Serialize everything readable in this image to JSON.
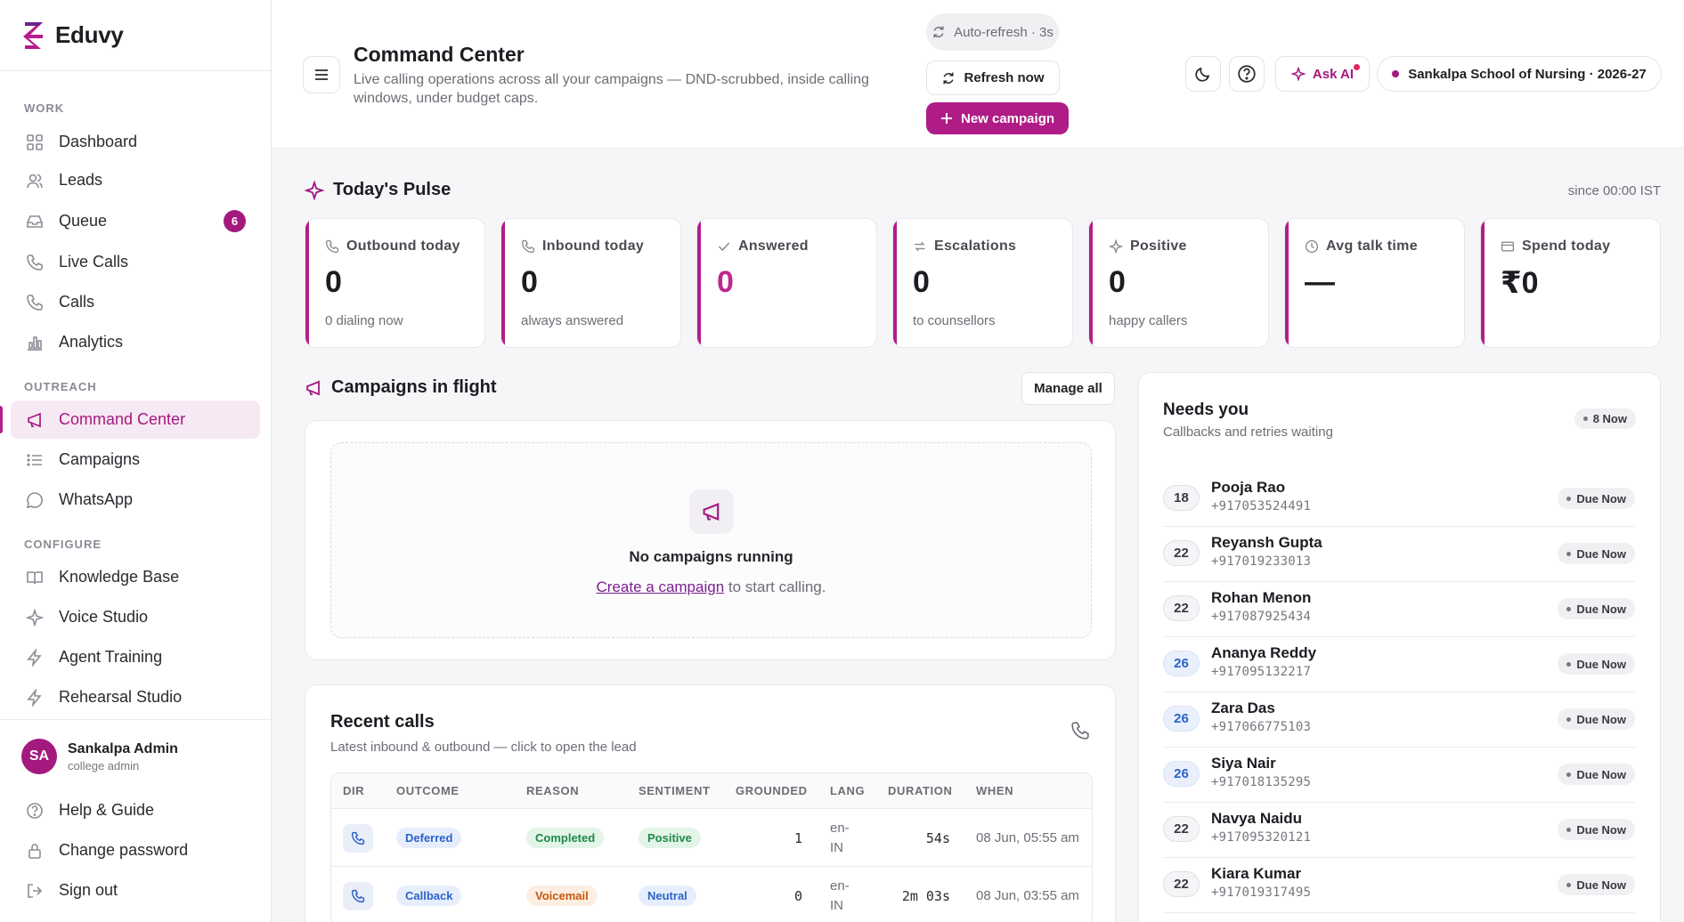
{
  "brand": {
    "name": "Eduvy"
  },
  "sidebar": {
    "sections": {
      "work": "WORK",
      "outreach": "OUTREACH",
      "configure": "CONFIGURE"
    },
    "items": [
      {
        "label": "Dashboard",
        "icon": "grid-icon"
      },
      {
        "label": "Leads",
        "icon": "users-icon"
      },
      {
        "label": "Queue",
        "icon": "inbox-icon",
        "badge": "6"
      },
      {
        "label": "Live Calls",
        "icon": "phone-icon"
      },
      {
        "label": "Calls",
        "icon": "phone-icon"
      },
      {
        "label": "Analytics",
        "icon": "bar-chart-icon"
      },
      {
        "label": "Command Center",
        "icon": "megaphone-icon",
        "active": true
      },
      {
        "label": "Campaigns",
        "icon": "list-icon"
      },
      {
        "label": "WhatsApp",
        "icon": "chat-icon"
      },
      {
        "label": "Knowledge Base",
        "icon": "book-icon"
      },
      {
        "label": "Voice Studio",
        "icon": "sparkle-icon"
      },
      {
        "label": "Agent Training",
        "icon": "bolt-icon"
      },
      {
        "label": "Rehearsal Studio",
        "icon": "bolt-icon"
      }
    ],
    "user": {
      "initials": "SA",
      "name": "Sankalpa Admin",
      "role": "college admin"
    },
    "footer": [
      {
        "label": "Help & Guide",
        "icon": "help-icon"
      },
      {
        "label": "Change password",
        "icon": "lock-icon"
      },
      {
        "label": "Sign out",
        "icon": "sign-out-icon"
      }
    ]
  },
  "header": {
    "title": "Command Center",
    "subtitle": "Live calling operations across all your campaigns — DND-scrubbed, inside calling windows, under budget caps.",
    "auto_refresh": "Auto-refresh · 3s",
    "refresh_now": "Refresh now",
    "new_campaign": "New campaign",
    "ask_ai": "Ask AI",
    "school": "Sankalpa School of Nursing · 2026-27"
  },
  "pulse": {
    "title": "Today's Pulse",
    "since": "since 00:00 IST",
    "cards": [
      {
        "label": "Outbound today",
        "value": "0",
        "sub": "0 dialing now",
        "icon": "phone-icon"
      },
      {
        "label": "Inbound today",
        "value": "0",
        "sub": "always answered",
        "icon": "phone-icon"
      },
      {
        "label": "Answered",
        "value": "0",
        "sub": "",
        "icon": "check-icon"
      },
      {
        "label": "Escalations",
        "value": "0",
        "sub": "to counsellors",
        "icon": "transfer-icon"
      },
      {
        "label": "Positive",
        "value": "0",
        "sub": "happy callers",
        "icon": "sparkle-icon"
      },
      {
        "label": "Avg talk time",
        "value": "—",
        "sub": "",
        "icon": "clock-icon"
      },
      {
        "label": "Spend today",
        "value": "₹0",
        "sub": "",
        "icon": "card-icon"
      }
    ]
  },
  "campaigns": {
    "title": "Campaigns in flight",
    "manage_all": "Manage all",
    "empty_title": "No campaigns running",
    "empty_link": "Create a campaign",
    "empty_rest": " to start calling."
  },
  "recent_calls": {
    "title": "Recent calls",
    "subtitle": "Latest inbound & outbound — click to open the lead",
    "columns": [
      "DIR",
      "OUTCOME",
      "REASON",
      "SENTIMENT",
      "GROUNDED",
      "LANG",
      "DURATION",
      "WHEN"
    ],
    "rows": [
      {
        "outcome": "Deferred",
        "reason": "Completed",
        "reason_style": "green",
        "sentiment": "Positive",
        "sentiment_style": "green",
        "grounded": "1",
        "lang1": "en-",
        "lang2": "IN",
        "duration": "54s",
        "when": "08 Jun, 05:55 am"
      },
      {
        "outcome": "Callback",
        "reason": "Voicemail",
        "reason_style": "orange",
        "sentiment": "Neutral",
        "sentiment_style": "blue",
        "grounded": "0",
        "lang1": "en-",
        "lang2": "IN",
        "duration": "2m 03s",
        "when": "08 Jun, 03:55 am"
      }
    ]
  },
  "needs_you": {
    "title": "Needs you",
    "subtitle": "Callbacks and retries waiting",
    "badge": "8 Now",
    "due_label": "Due Now",
    "rows": [
      {
        "score": "18",
        "score_style": "grey",
        "name": "Pooja Rao",
        "phone": "+917053524491"
      },
      {
        "score": "22",
        "score_style": "grey",
        "name": "Reyansh Gupta",
        "phone": "+917019233013"
      },
      {
        "score": "22",
        "score_style": "grey",
        "name": "Rohan Menon",
        "phone": "+917087925434"
      },
      {
        "score": "26",
        "score_style": "blue",
        "name": "Ananya Reddy",
        "phone": "+917095132217"
      },
      {
        "score": "26",
        "score_style": "blue",
        "name": "Zara Das",
        "phone": "+917066775103"
      },
      {
        "score": "26",
        "score_style": "blue",
        "name": "Siya Nair",
        "phone": "+917018135295"
      },
      {
        "score": "22",
        "score_style": "grey",
        "name": "Navya Naidu",
        "phone": "+917095320121"
      },
      {
        "score": "22",
        "score_style": "grey",
        "name": "Kiara Kumar",
        "phone": "+917019317495"
      }
    ]
  },
  "colors": {
    "accent": "#b01c86",
    "accent_soft": "#f7e9f4",
    "blue": "#2b63c9",
    "green": "#1e8a45",
    "orange": "#c5570f"
  }
}
